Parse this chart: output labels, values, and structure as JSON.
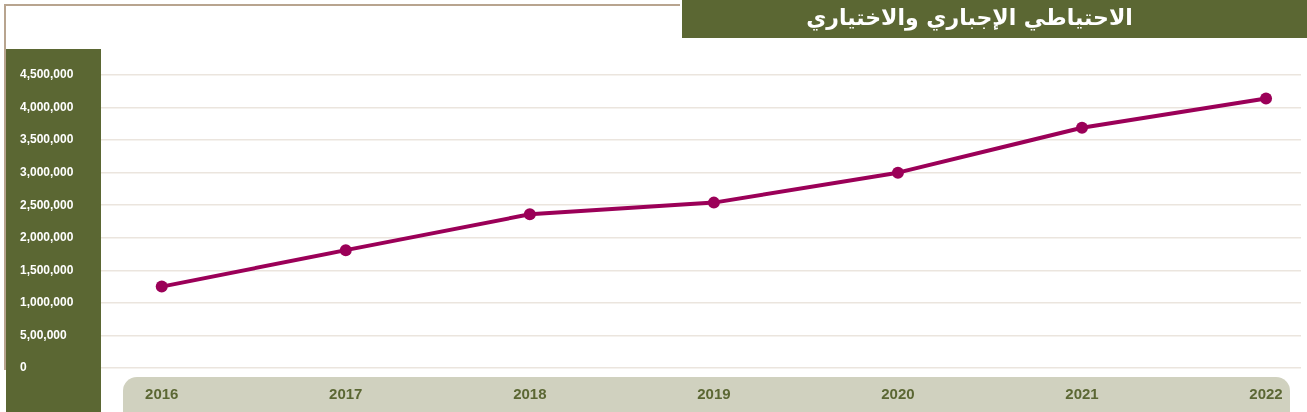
{
  "chart_data": {
    "type": "line",
    "title": "الاحتياطي الإجباري والاختياري",
    "categories": [
      "2016",
      "2017",
      "2018",
      "2019",
      "2020",
      "2021",
      "2022"
    ],
    "values": [
      1250000,
      1810000,
      2360000,
      2540000,
      3000000,
      3690000,
      4140000
    ],
    "color": "#9b0058",
    "ylim": [
      0,
      4500000
    ],
    "yticks": [
      0,
      {
        "value": 500000,
        "label": "5,00,000"
      },
      {
        "value": 1000000,
        "label": "1,000,000"
      },
      {
        "value": 1500000,
        "label": "1,500,000"
      },
      {
        "value": 2000000,
        "label": "2,000,000"
      },
      {
        "value": 2500000,
        "label": "2,500,000"
      },
      {
        "value": 3000000,
        "label": "3,000,000"
      },
      {
        "value": 3500000,
        "label": "3,500,000"
      },
      {
        "value": 4000000,
        "label": "4,000,000"
      },
      {
        "value": 4500000,
        "label": "4,500,000"
      }
    ],
    "grid": "y",
    "marker": "circle",
    "legend": false
  }
}
